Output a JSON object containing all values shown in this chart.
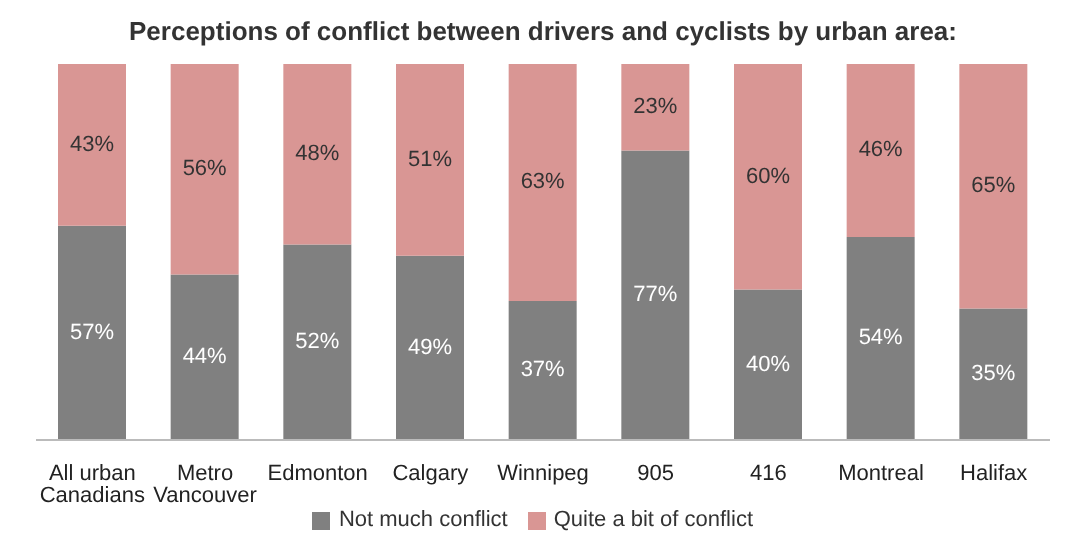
{
  "chart_data": {
    "type": "bar",
    "title": "Perceptions of conflict between drivers and cyclists by urban area:",
    "categories": [
      "All urban Canadians",
      "Metro Vancouver",
      "Edmonton",
      "Calgary",
      "Winnipeg",
      "905",
      "416",
      "Montreal",
      "Halifax"
    ],
    "stacked": true,
    "legend": "bottom",
    "grid": false,
    "series": [
      {
        "name": "Not much conflict",
        "color": "#808080",
        "values": [
          57,
          44,
          52,
          49,
          37,
          77,
          40,
          54,
          35
        ],
        "value_labels": [
          "57%",
          "44%",
          "52%",
          "49%",
          "37%",
          "77%",
          "40%",
          "54%",
          "35%"
        ]
      },
      {
        "name": "Quite a bit of conflict",
        "color": "#d99694",
        "values": [
          43,
          56,
          48,
          51,
          63,
          23,
          60,
          46,
          65
        ],
        "value_labels": [
          "43%",
          "56%",
          "48%",
          "51%",
          "63%",
          "23%",
          "60%",
          "46%",
          "65%"
        ]
      }
    ]
  }
}
